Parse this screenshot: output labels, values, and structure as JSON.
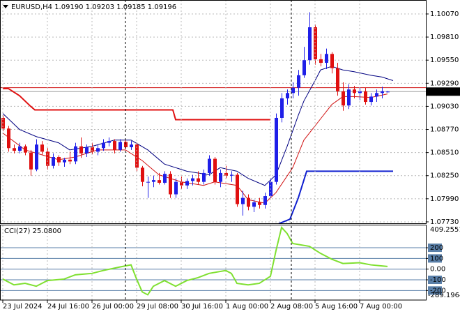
{
  "chart_data": [
    {
      "type": "candlestick",
      "title": "EURUSD,H4  1.09190 1.09203 1.09185 1.09196",
      "up_color": "#1f1fe8",
      "down_color": "#e01010",
      "open": [
        1.089,
        1.0878,
        1.0856,
        1.0853,
        1.0858,
        1.0851,
        1.0832,
        1.086,
        1.0852,
        1.0836,
        1.0846,
        1.084,
        1.0843,
        1.0841,
        1.0858,
        1.085,
        1.0857,
        1.0852,
        1.0856,
        1.0862,
        1.0864,
        1.0854,
        1.0863,
        1.0857,
        1.086,
        1.0834,
        1.0818,
        1.0818,
        1.082,
        1.0817,
        1.0827,
        1.0804,
        1.0818,
        1.0814,
        1.0819,
        1.0822,
        1.0818,
        1.0828,
        1.0844,
        1.0818,
        1.0828,
        1.0825,
        1.0826,
        1.0793,
        1.08,
        1.079,
        1.0795,
        1.0792,
        1.0802,
        1.0818,
        1.089,
        1.0912,
        1.0918,
        1.0924,
        1.0938,
        1.0955,
        1.0992,
        1.0956,
        1.0952,
        1.0962,
        1.0946,
        1.092,
        1.0904,
        1.0922,
        1.0918,
        1.092,
        1.0908,
        1.0914,
        1.0918,
        1.0919
      ],
      "high": [
        1.0893,
        1.0881,
        1.086,
        1.0862,
        1.086,
        1.0854,
        1.0866,
        1.0864,
        1.0856,
        1.085,
        1.0848,
        1.0845,
        1.0852,
        1.0862,
        1.0868,
        1.086,
        1.0862,
        1.086,
        1.0866,
        1.0868,
        1.0866,
        1.0866,
        1.0865,
        1.0864,
        1.0862,
        1.0836,
        1.0824,
        1.0825,
        1.0828,
        1.083,
        1.083,
        1.0822,
        1.0824,
        1.0822,
        1.0826,
        1.083,
        1.0832,
        1.0848,
        1.0846,
        1.0832,
        1.0836,
        1.083,
        1.0828,
        1.0808,
        1.0804,
        1.0798,
        1.08,
        1.0806,
        1.0822,
        1.0895,
        1.0918,
        1.0922,
        1.093,
        1.0944,
        1.097,
        1.1009,
        1.0995,
        1.0962,
        1.0968,
        1.0964,
        1.0952,
        1.093,
        1.0928,
        1.0926,
        1.0924,
        1.0924,
        1.0918,
        1.0922,
        1.0925,
        1.09203
      ],
      "low": [
        1.0875,
        1.0852,
        1.085,
        1.085,
        1.0848,
        1.0825,
        1.083,
        1.0848,
        1.0832,
        1.0833,
        1.0836,
        1.0835,
        1.0838,
        1.0838,
        1.0845,
        1.0846,
        1.0849,
        1.0848,
        1.0853,
        1.0858,
        1.085,
        1.0852,
        1.0855,
        1.0854,
        1.083,
        1.0813,
        1.08,
        1.0812,
        1.0815,
        1.0815,
        1.08,
        1.08,
        1.081,
        1.081,
        1.0814,
        1.0815,
        1.0815,
        1.0825,
        1.0815,
        1.0812,
        1.0822,
        1.0818,
        1.079,
        1.078,
        1.0786,
        1.0784,
        1.0788,
        1.0788,
        1.08,
        1.0815,
        1.0885,
        1.0905,
        1.0912,
        1.0915,
        1.0935,
        1.095,
        1.095,
        1.0948,
        1.0945,
        1.094,
        1.0915,
        1.0898,
        1.09,
        1.0912,
        1.091,
        1.0905,
        1.0904,
        1.0908,
        1.0912,
        1.09185
      ],
      "close": [
        1.0878,
        1.0856,
        1.0853,
        1.0858,
        1.0851,
        1.0832,
        1.086,
        1.0852,
        1.0836,
        1.0846,
        1.084,
        1.0843,
        1.0841,
        1.0858,
        1.085,
        1.0857,
        1.0852,
        1.0856,
        1.0862,
        1.0864,
        1.0854,
        1.0863,
        1.0857,
        1.086,
        1.0834,
        1.0818,
        1.0818,
        1.082,
        1.0817,
        1.0827,
        1.0804,
        1.0818,
        1.0814,
        1.0819,
        1.0822,
        1.0818,
        1.0828,
        1.0844,
        1.0818,
        1.0828,
        1.0825,
        1.0826,
        1.0793,
        1.08,
        1.079,
        1.0795,
        1.0792,
        1.0802,
        1.0818,
        1.089,
        1.0912,
        1.0918,
        1.0924,
        1.0938,
        1.0955,
        1.0992,
        1.0956,
        1.0952,
        1.0962,
        1.0946,
        1.092,
        1.0904,
        1.0922,
        1.0918,
        1.092,
        1.0908,
        1.0914,
        1.0918,
        1.092,
        1.09196
      ],
      "series": [
        {
          "color": "#000080",
          "x": [
            0,
            3,
            6,
            10,
            12,
            16,
            20,
            23,
            26,
            29,
            33,
            37,
            39,
            42,
            44,
            47,
            49,
            51,
            53,
            54,
            56,
            57,
            59,
            61,
            63,
            66,
            68,
            70
          ],
          "values": [
            1.0895,
            1.0877,
            1.0869,
            1.0862,
            1.0854,
            1.0858,
            1.0865,
            1.0865,
            1.0854,
            1.0838,
            1.083,
            1.0826,
            1.0834,
            1.083,
            1.0822,
            1.0814,
            1.0826,
            1.0858,
            1.0893,
            1.0909,
            1.0932,
            1.0944,
            1.0948,
            1.0944,
            1.0942,
            1.0938,
            1.0936,
            1.0932
          ]
        },
        {
          "color": "#d01010",
          "x": [
            0,
            4,
            10,
            13,
            17,
            22,
            25,
            28,
            32,
            36,
            38,
            42,
            44,
            47,
            49,
            52,
            54,
            57,
            59,
            61,
            63,
            66,
            69
          ],
          "values": [
            1.0873,
            1.0854,
            1.0843,
            1.0846,
            1.0854,
            1.0854,
            1.0842,
            1.0826,
            1.0818,
            1.0814,
            1.0818,
            1.0814,
            1.0798,
            1.0794,
            1.0806,
            1.0834,
            1.0865,
            1.0889,
            1.0905,
            1.0914,
            1.0914,
            1.0913,
            1.0917
          ]
        },
        {
          "color": "#e01010",
          "width": 2,
          "x": [
            0,
            1,
            3,
            5,
            5.75,
            30.5,
            31,
            48
          ],
          "values": [
            1.0923,
            1.0923,
            1.0915,
            1.0903,
            1.0899,
            1.0899,
            1.0888,
            1.0888
          ]
        },
        {
          "color": "#1020d0",
          "width": 2,
          "x": [
            49.5,
            51.5,
            53,
            54.5,
            70
          ],
          "values": [
            1.0771,
            1.0776,
            1.08,
            1.083,
            1.083
          ]
        }
      ],
      "levels": [
        {
          "value": 1.0924,
          "color": "#d01010"
        }
      ],
      "xlim": [
        -0.5,
        75.875
      ],
      "ylim": [
        1.07714,
        1.10227
      ],
      "yticks": [
        {
          "value": 1.1007,
          "label": "1.10070"
        },
        {
          "value": 1.0981,
          "label": "1.09810"
        },
        {
          "value": 1.0955,
          "label": "1.09550"
        },
        {
          "value": 1.0929,
          "label": "1.09290"
        },
        {
          "value": 1.0903,
          "label": "1.09030"
        },
        {
          "value": 1.0877,
          "label": "1.08770"
        },
        {
          "value": 1.0851,
          "label": "1.08510"
        },
        {
          "value": 1.0825,
          "label": "1.08250"
        },
        {
          "value": 1.0799,
          "label": "1.07990"
        },
        {
          "value": 1.0773,
          "label": "1.07730"
        }
      ],
      "grid": true
    },
    {
      "type": "line",
      "title": "CCI(27) 25.0800",
      "color": "#7fe030",
      "level_color": "#5a7fa8",
      "x": [
        0,
        2,
        4,
        6,
        8,
        11,
        13,
        16,
        18,
        21,
        23,
        24,
        25,
        26,
        27,
        29,
        31,
        33,
        35,
        37,
        40,
        41,
        42,
        44,
        46,
        48,
        49,
        50,
        51,
        52,
        55,
        57,
        59,
        61,
        64,
        66,
        69
      ],
      "values": [
        -93,
        -147,
        -133,
        -160,
        -107,
        -93,
        -53,
        -40,
        -13,
        20,
        40,
        -93,
        -213,
        -240,
        -160,
        -107,
        -160,
        -107,
        -80,
        -40,
        -13,
        -40,
        -133,
        -147,
        -133,
        -67,
        173,
        390,
        333,
        240,
        213,
        147,
        93,
        53,
        60,
        40,
        25.08
      ],
      "xlim": [
        -0.5,
        75.875
      ],
      "ylim": [
        -289.1964,
        409.2551
      ],
      "yticks": [
        200,
        100,
        {
          "value": 0,
          "label": "0.00"
        },
        -100,
        -200
      ],
      "xticks": [
        {
          "value": 0,
          "label": "23 Jul 2024"
        },
        {
          "value": 8,
          "label": "24 Jul 16:00"
        },
        {
          "value": 16,
          "label": "26 Jul 00:00"
        },
        {
          "value": 24,
          "label": "29 Jul 08:00"
        },
        {
          "value": 32,
          "label": "30 Jul 16:00"
        },
        {
          "value": 40,
          "label": "1 Aug 00:00"
        },
        {
          "value": 48,
          "label": "2 Aug 08:00"
        },
        {
          "value": 56,
          "label": "5 Aug 16:00"
        },
        {
          "value": 64,
          "label": "7 Aug 00:00"
        }
      ],
      "grid": true
    }
  ]
}
